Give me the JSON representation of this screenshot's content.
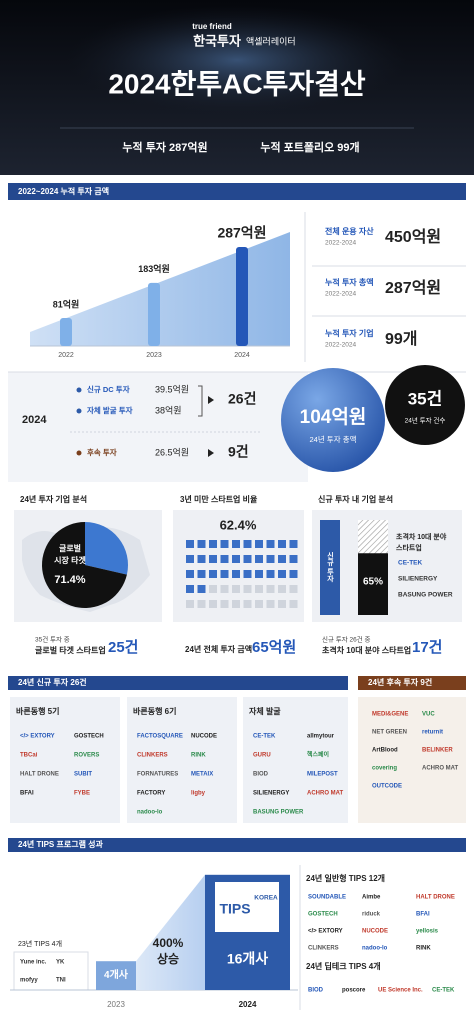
{
  "header": {
    "brand": "true friend",
    "org": "한국투자",
    "org_sub": "액셀러레이터",
    "title": "2024한투AC투자결산",
    "summary_1": "누적 투자 287억원",
    "summary_2": "누적 포트폴리오 99개"
  },
  "cumulative": {
    "title": "2022~2024 누적 투자 금액",
    "categories": [
      "2022",
      "2023",
      "2024"
    ],
    "values": [
      81,
      183,
      287
    ],
    "value_labels": [
      "81억원",
      "183억원",
      "287억원"
    ],
    "stats": [
      {
        "label": "전체 운용 자산",
        "period": "2022-2024",
        "value": "450억원"
      },
      {
        "label": "누적 투자 총액",
        "period": "2022-2024",
        "value": "287억원"
      },
      {
        "label": "누적 투자 기업",
        "period": "2022-2024",
        "value": "99개"
      }
    ]
  },
  "year2024": {
    "year": "2024",
    "items": [
      {
        "label": "신규 DC 투자",
        "amount": "39.5억원"
      },
      {
        "label": "자체 발굴 투자",
        "amount": "38억원"
      },
      {
        "label": "후속 투자",
        "amount": "26.5억원"
      }
    ],
    "new_count": "26건",
    "follow_count": "9건",
    "total": "104억원",
    "total_label": "24년 투자 총액",
    "count": "35건",
    "count_label": "24년 투자 건수"
  },
  "analysis": {
    "global": {
      "title": "24년 투자 기업 분석",
      "label_1": "글로벌",
      "label_2": "시장 타겟",
      "value": 71.4,
      "value_label": "71.4%",
      "caption_1": "35건 투자 중",
      "caption_2": "글로벌 타겟 스타트업",
      "count": "25건"
    },
    "early": {
      "title": "3년 미만 스타트업 비율",
      "value": 62.4,
      "value_label": "62.4%",
      "caption": "24년 전체 투자 금액",
      "amount": "65억원"
    },
    "deeptech": {
      "title": "신규 투자 내 기업 분석",
      "bar_label": "신규 투자",
      "value": 65,
      "value_label": "65%",
      "legend_1": "초격차 10대 분야",
      "legend_2": "스타트업",
      "logos": [
        "CE-TEK",
        "SILIENERGY",
        "BASUNG POWER"
      ],
      "caption_1": "신규 투자 26건 중",
      "caption_2": "초격차 10대 분야 스타트업",
      "count": "17건"
    }
  },
  "new_investment": {
    "title": "24년 신규 투자 26건",
    "groups": [
      {
        "name": "바른동행 5기",
        "logos": [
          "</> EXTORY",
          "GOSTECH",
          "TBCai",
          "ROVERS",
          "HALT DRONE",
          "SUBIT",
          "BFAI",
          "FYBE"
        ]
      },
      {
        "name": "바른동행 6기",
        "logos": [
          "FACTOSQUARE",
          "NUCODE",
          "CLINKERS",
          "RINK",
          "FORNATURES",
          "METAIX",
          "FACTORY",
          "ligby",
          "nadoo-lo"
        ]
      },
      {
        "name": "자체 발굴",
        "logos": [
          "CE-TEK",
          "allmytour",
          "GURU",
          "헥스페이",
          "BIOD",
          "MILEPOST",
          "SILIENERGY",
          "ACHRO MAT",
          "BASUNG POWER"
        ]
      }
    ]
  },
  "follow_on": {
    "title": "24년 후속 투자 9건",
    "logos": [
      "MEDI&GENE",
      "VUC",
      "NET GREEN",
      "returnit",
      "ArtBlood",
      "BELINKER",
      "covering",
      "ACHRO MAT",
      "OUTCODE"
    ]
  },
  "tips": {
    "title": "24년 TIPS 프로그램 성과",
    "prev_title": "23년 TIPS 4개",
    "prev_logos": [
      "Yune inc.",
      "YK",
      "mofyy",
      "TNI"
    ],
    "categories": [
      "2023",
      "2024"
    ],
    "values": [
      4,
      16
    ],
    "value_labels": [
      "4개사",
      "16개사"
    ],
    "growth_1": "400%",
    "growth_2": "상승",
    "badge": "TIPS",
    "badge_sub": "KOREA",
    "general_title": "24년 일반형 TIPS 12개",
    "general_logos": [
      "SOUNDABLE",
      "Aimbe",
      "HALT DRONE",
      "GOSTECH",
      "riduck",
      "BFAI",
      "</> EXTORY",
      "NUCODE",
      "yellosis",
      "CLINKERS",
      "nadoo-lo",
      "RINK"
    ],
    "deep_title": "24년 딥테크 TIPS 4개",
    "deep_logos": [
      "BIOD",
      "poscore",
      "UE Science Inc.",
      "CE-TEK"
    ]
  }
}
